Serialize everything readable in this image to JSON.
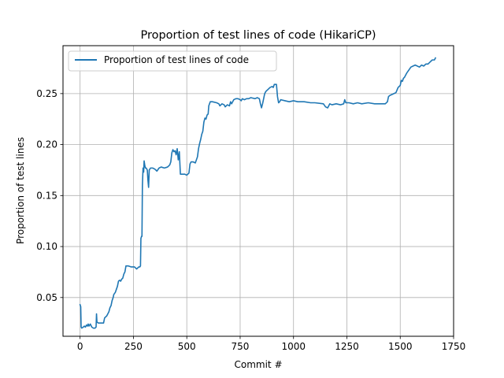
{
  "chart_data": {
    "type": "line",
    "title": "Proportion of test lines of code (HikariCP)",
    "xlabel": "Commit #",
    "ylabel": "Proportion of test lines",
    "xlim": [
      -80,
      1750
    ],
    "ylim": [
      0.012,
      0.297
    ],
    "xticks": [
      0,
      250,
      500,
      750,
      1000,
      1250,
      1500,
      1750
    ],
    "xtick_labels": [
      "0",
      "250",
      "500",
      "750",
      "1000",
      "1250",
      "1500",
      "1750"
    ],
    "yticks": [
      0.05,
      0.1,
      0.15,
      0.2,
      0.25
    ],
    "ytick_labels": [
      "0.05",
      "0.10",
      "0.15",
      "0.20",
      "0.25"
    ],
    "grid": true,
    "legend_position": "upper-left",
    "series": [
      {
        "name": "Proportion of test lines of code",
        "color": "#1f77b4",
        "points": [
          [
            0,
            0.043
          ],
          [
            3,
            0.041
          ],
          [
            5,
            0.021
          ],
          [
            8,
            0.02
          ],
          [
            15,
            0.021
          ],
          [
            20,
            0.022
          ],
          [
            25,
            0.021
          ],
          [
            30,
            0.023
          ],
          [
            35,
            0.022
          ],
          [
            38,
            0.024
          ],
          [
            42,
            0.022
          ],
          [
            48,
            0.024
          ],
          [
            55,
            0.021
          ],
          [
            62,
            0.02
          ],
          [
            70,
            0.02
          ],
          [
            75,
            0.021
          ],
          [
            77,
            0.034
          ],
          [
            79,
            0.026
          ],
          [
            85,
            0.025
          ],
          [
            100,
            0.025
          ],
          [
            110,
            0.025
          ],
          [
            115,
            0.03
          ],
          [
            125,
            0.032
          ],
          [
            135,
            0.036
          ],
          [
            140,
            0.04
          ],
          [
            145,
            0.042
          ],
          [
            150,
            0.047
          ],
          [
            155,
            0.05
          ],
          [
            158,
            0.053
          ],
          [
            165,
            0.055
          ],
          [
            170,
            0.058
          ],
          [
            175,
            0.061
          ],
          [
            180,
            0.066
          ],
          [
            185,
            0.067
          ],
          [
            190,
            0.066
          ],
          [
            195,
            0.068
          ],
          [
            200,
            0.069
          ],
          [
            205,
            0.073
          ],
          [
            210,
            0.075
          ],
          [
            215,
            0.081
          ],
          [
            225,
            0.081
          ],
          [
            240,
            0.08
          ],
          [
            255,
            0.08
          ],
          [
            265,
            0.078
          ],
          [
            275,
            0.08
          ],
          [
            280,
            0.08
          ],
          [
            283,
            0.081
          ],
          [
            285,
            0.108
          ],
          [
            288,
            0.11
          ],
          [
            290,
            0.11
          ],
          [
            292,
            0.16
          ],
          [
            295,
            0.177
          ],
          [
            298,
            0.173
          ],
          [
            300,
            0.184
          ],
          [
            303,
            0.18
          ],
          [
            306,
            0.177
          ],
          [
            310,
            0.177
          ],
          [
            315,
            0.175
          ],
          [
            318,
            0.165
          ],
          [
            321,
            0.158
          ],
          [
            324,
            0.175
          ],
          [
            330,
            0.177
          ],
          [
            340,
            0.177
          ],
          [
            350,
            0.176
          ],
          [
            360,
            0.174
          ],
          [
            370,
            0.177
          ],
          [
            380,
            0.178
          ],
          [
            395,
            0.177
          ],
          [
            410,
            0.178
          ],
          [
            420,
            0.18
          ],
          [
            425,
            0.183
          ],
          [
            430,
            0.192
          ],
          [
            435,
            0.195
          ],
          [
            440,
            0.193
          ],
          [
            445,
            0.194
          ],
          [
            450,
            0.19
          ],
          [
            455,
            0.196
          ],
          [
            460,
            0.185
          ],
          [
            465,
            0.193
          ],
          [
            470,
            0.171
          ],
          [
            480,
            0.171
          ],
          [
            490,
            0.171
          ],
          [
            500,
            0.17
          ],
          [
            510,
            0.172
          ],
          [
            515,
            0.181
          ],
          [
            520,
            0.183
          ],
          [
            530,
            0.183
          ],
          [
            540,
            0.182
          ],
          [
            545,
            0.185
          ],
          [
            550,
            0.188
          ],
          [
            555,
            0.196
          ],
          [
            560,
            0.201
          ],
          [
            565,
            0.205
          ],
          [
            570,
            0.21
          ],
          [
            575,
            0.213
          ],
          [
            580,
            0.222
          ],
          [
            585,
            0.226
          ],
          [
            590,
            0.225
          ],
          [
            595,
            0.229
          ],
          [
            600,
            0.23
          ],
          [
            603,
            0.238
          ],
          [
            610,
            0.242
          ],
          [
            620,
            0.242
          ],
          [
            640,
            0.241
          ],
          [
            650,
            0.24
          ],
          [
            655,
            0.238
          ],
          [
            665,
            0.24
          ],
          [
            675,
            0.239
          ],
          [
            680,
            0.237
          ],
          [
            690,
            0.239
          ],
          [
            700,
            0.238
          ],
          [
            705,
            0.242
          ],
          [
            710,
            0.24
          ],
          [
            720,
            0.244
          ],
          [
            730,
            0.245
          ],
          [
            740,
            0.245
          ],
          [
            750,
            0.244
          ],
          [
            755,
            0.243
          ],
          [
            760,
            0.245
          ],
          [
            770,
            0.244
          ],
          [
            780,
            0.245
          ],
          [
            790,
            0.245
          ],
          [
            800,
            0.246
          ],
          [
            820,
            0.245
          ],
          [
            830,
            0.246
          ],
          [
            840,
            0.245
          ],
          [
            845,
            0.24
          ],
          [
            850,
            0.236
          ],
          [
            855,
            0.24
          ],
          [
            860,
            0.245
          ],
          [
            865,
            0.25
          ],
          [
            870,
            0.252
          ],
          [
            875,
            0.253
          ],
          [
            880,
            0.254
          ],
          [
            890,
            0.256
          ],
          [
            900,
            0.257
          ],
          [
            905,
            0.256
          ],
          [
            910,
            0.259
          ],
          [
            920,
            0.259
          ],
          [
            925,
            0.247
          ],
          [
            930,
            0.241
          ],
          [
            935,
            0.242
          ],
          [
            940,
            0.244
          ],
          [
            960,
            0.243
          ],
          [
            980,
            0.242
          ],
          [
            1000,
            0.243
          ],
          [
            1020,
            0.242
          ],
          [
            1050,
            0.242
          ],
          [
            1080,
            0.241
          ],
          [
            1100,
            0.241
          ],
          [
            1140,
            0.24
          ],
          [
            1150,
            0.237
          ],
          [
            1160,
            0.236
          ],
          [
            1170,
            0.24
          ],
          [
            1180,
            0.239
          ],
          [
            1200,
            0.24
          ],
          [
            1220,
            0.239
          ],
          [
            1235,
            0.24
          ],
          [
            1240,
            0.244
          ],
          [
            1245,
            0.241
          ],
          [
            1260,
            0.241
          ],
          [
            1280,
            0.24
          ],
          [
            1300,
            0.241
          ],
          [
            1320,
            0.24
          ],
          [
            1350,
            0.241
          ],
          [
            1380,
            0.24
          ],
          [
            1410,
            0.24
          ],
          [
            1430,
            0.24
          ],
          [
            1440,
            0.242
          ],
          [
            1445,
            0.247
          ],
          [
            1450,
            0.248
          ],
          [
            1460,
            0.249
          ],
          [
            1470,
            0.25
          ],
          [
            1480,
            0.251
          ],
          [
            1490,
            0.256
          ],
          [
            1500,
            0.258
          ],
          [
            1505,
            0.263
          ],
          [
            1510,
            0.262
          ],
          [
            1515,
            0.265
          ],
          [
            1520,
            0.266
          ],
          [
            1530,
            0.27
          ],
          [
            1540,
            0.273
          ],
          [
            1550,
            0.276
          ],
          [
            1560,
            0.277
          ],
          [
            1570,
            0.278
          ],
          [
            1580,
            0.277
          ],
          [
            1590,
            0.276
          ],
          [
            1600,
            0.278
          ],
          [
            1610,
            0.277
          ],
          [
            1620,
            0.279
          ],
          [
            1630,
            0.279
          ],
          [
            1640,
            0.281
          ],
          [
            1650,
            0.283
          ],
          [
            1660,
            0.283
          ],
          [
            1665,
            0.285
          ]
        ]
      }
    ]
  }
}
